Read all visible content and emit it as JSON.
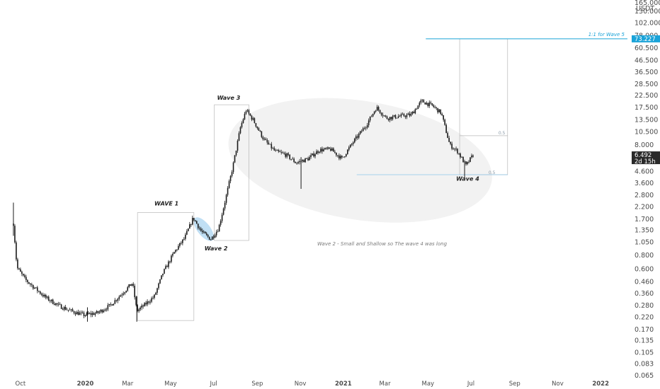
{
  "chart_data": {
    "type": "candlestick",
    "pair_label": "USDT",
    "top_cut_label": "165.000",
    "x_tick_labels": [
      {
        "label": "Oct",
        "date": "2019-10-01",
        "bold": false
      },
      {
        "label": "2020",
        "date": "2020-01-01",
        "bold": true
      },
      {
        "label": "Mar",
        "date": "2020-03-01",
        "bold": false
      },
      {
        "label": "May",
        "date": "2020-05-01",
        "bold": false
      },
      {
        "label": "Jul",
        "date": "2020-07-01",
        "bold": false
      },
      {
        "label": "Sep",
        "date": "2020-09-01",
        "bold": false
      },
      {
        "label": "Nov",
        "date": "2020-11-01",
        "bold": false
      },
      {
        "label": "2021",
        "date": "2021-01-01",
        "bold": true
      },
      {
        "label": "Mar",
        "date": "2021-03-01",
        "bold": false
      },
      {
        "label": "May",
        "date": "2021-05-01",
        "bold": false
      },
      {
        "label": "Jul",
        "date": "2021-07-01",
        "bold": false
      },
      {
        "label": "Sep",
        "date": "2021-09-01",
        "bold": false
      },
      {
        "label": "Nov",
        "date": "2021-11-01",
        "bold": false
      },
      {
        "label": "2022",
        "date": "2022-01-01",
        "bold": true
      }
    ],
    "y_tick_labels": [
      "130.000",
      "102.000",
      "78.000",
      "60.500",
      "46.500",
      "36.500",
      "28.500",
      "22.500",
      "17.500",
      "13.500",
      "10.500",
      "8.000",
      "4.600",
      "3.600",
      "2.800",
      "2.200",
      "1.700",
      "1.350",
      "1.050",
      "0.800",
      "0.600",
      "0.460",
      "0.360",
      "0.280",
      "0.220",
      "0.170",
      "0.135",
      "0.105",
      "0.083",
      "0.065"
    ],
    "y_scale": "log",
    "x_range": [
      "2019-09-10",
      "2022-02-08"
    ],
    "current_price": {
      "label": "6.492",
      "value": 6.492,
      "countdown": "2d 15h"
    },
    "target_price": {
      "label": "73.227",
      "value": 73.227
    },
    "close_path": [
      [
        "2019-09-21",
        1.55
      ],
      [
        "2019-09-26",
        0.62
      ],
      [
        "2019-10-08",
        0.48
      ],
      [
        "2019-10-22",
        0.4
      ],
      [
        "2019-11-06",
        0.33
      ],
      [
        "2019-11-24",
        0.28
      ],
      [
        "2019-12-12",
        0.25
      ],
      [
        "2019-12-30",
        0.23
      ],
      [
        "2020-01-18",
        0.24
      ],
      [
        "2020-02-05",
        0.28
      ],
      [
        "2020-02-22",
        0.36
      ],
      [
        "2020-03-08",
        0.45
      ],
      [
        "2020-03-14",
        0.25
      ],
      [
        "2020-03-24",
        0.28
      ],
      [
        "2020-04-08",
        0.34
      ],
      [
        "2020-04-20",
        0.55
      ],
      [
        "2020-05-06",
        0.85
      ],
      [
        "2020-05-21",
        1.15
      ],
      [
        "2020-06-02",
        1.75
      ],
      [
        "2020-06-14",
        1.3
      ],
      [
        "2020-06-27",
        1.12
      ],
      [
        "2020-07-08",
        1.4
      ],
      [
        "2020-07-18",
        2.6
      ],
      [
        "2020-07-28",
        5.0
      ],
      [
        "2020-08-08",
        11.5
      ],
      [
        "2020-08-16",
        16.5
      ],
      [
        "2020-08-26",
        13.5
      ],
      [
        "2020-09-10",
        9.0
      ],
      [
        "2020-09-26",
        7.0
      ],
      [
        "2020-10-12",
        6.5
      ],
      [
        "2020-10-26",
        5.5
      ],
      [
        "2020-11-12",
        6.0
      ],
      [
        "2020-11-28",
        7.2
      ],
      [
        "2020-12-14",
        7.3
      ],
      [
        "2020-12-30",
        6.0
      ],
      [
        "2021-01-15",
        8.5
      ],
      [
        "2021-02-02",
        12.0
      ],
      [
        "2021-02-17",
        17.5
      ],
      [
        "2021-03-03",
        14.0
      ],
      [
        "2021-03-20",
        14.5
      ],
      [
        "2021-04-07",
        15.0
      ],
      [
        "2021-04-22",
        20.0
      ],
      [
        "2021-05-08",
        18.0
      ],
      [
        "2021-05-20",
        15.5
      ],
      [
        "2021-06-01",
        8.0
      ],
      [
        "2021-06-12",
        7.0
      ],
      [
        "2021-06-24",
        5.2
      ],
      [
        "2021-07-04",
        6.49
      ]
    ]
  },
  "annotations": {
    "wave1": "WAVE 1",
    "wave2": "Wave 2",
    "wave3": "Wave 3",
    "wave4": "Wave 4",
    "target_label": "1:1 for Wave 5",
    "note": "Wave 2 - Small and Shallow so The wave 4 was long",
    "fib_upper_label": "0.5",
    "fib_lower_label": "0.5"
  },
  "colors": {
    "candle": "#1a1a1a",
    "ellipse_fill": "#f2f2f2",
    "wave2_highlight": "#b9dcf3",
    "box_stroke": "#b8b8b8",
    "target_line": "#1aa3d8",
    "fib_line": "#8cc6ea",
    "current_badge_bg": "#2a2a2a",
    "current_badge_text": "#ffffff",
    "target_badge_bg": "#1aa3d8",
    "target_badge_text": "#ffffff"
  }
}
